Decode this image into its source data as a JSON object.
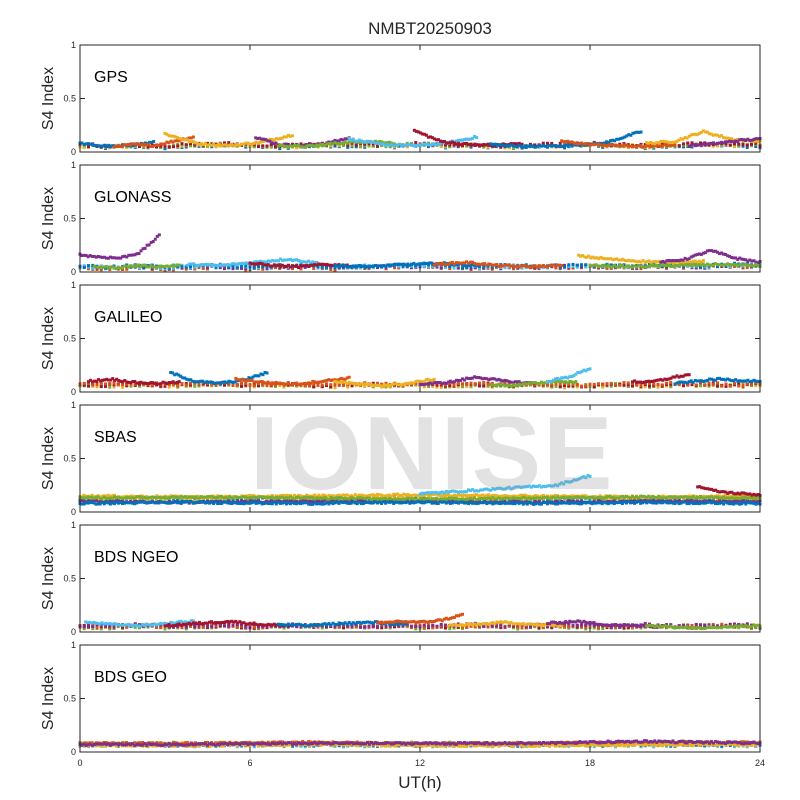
{
  "figure_title": "NMBT20250903",
  "watermark": "IONISE",
  "colors": [
    "#0072BD",
    "#D95319",
    "#EDB120",
    "#7E2F8E",
    "#77AC30",
    "#4DBEEE",
    "#A2142F"
  ],
  "chart_data": {
    "type": "scatter",
    "title": "NMBT20250903",
    "xlabel": "UT(h)",
    "xlim": [
      0,
      24
    ],
    "xticks": [
      "0",
      "6",
      "12",
      "18",
      "24"
    ],
    "ylabel": "S4 Index",
    "ylim": [
      0,
      1
    ],
    "yticks": [
      "0",
      "0.5",
      "1"
    ],
    "grid": false,
    "panels": [
      {
        "label": "GPS",
        "baseline": [
          0.06,
          0.05,
          0.06,
          0.05,
          0.06,
          0.07,
          0.06,
          0.05,
          0.06,
          0.07,
          0.06,
          0.06,
          0.07,
          0.06,
          0.06,
          0.05,
          0.06,
          0.06,
          0.07,
          0.06,
          0.05,
          0.06,
          0.07,
          0.07,
          0.06
        ],
        "arcs": [
          {
            "start": 0.0,
            "end": 2.6,
            "values": [
              0.08,
              0.06,
              0.05,
              0.07,
              0.09
            ]
          },
          {
            "start": 1.2,
            "end": 4.0,
            "values": [
              0.05,
              0.07,
              0.06,
              0.1,
              0.14
            ]
          },
          {
            "start": 3.0,
            "end": 7.5,
            "values": [
              0.17,
              0.08,
              0.06,
              0.09,
              0.16
            ]
          },
          {
            "start": 6.2,
            "end": 9.5,
            "values": [
              0.14,
              0.07,
              0.06,
              0.08,
              0.13
            ]
          },
          {
            "start": 7.0,
            "end": 11.0,
            "values": [
              0.06,
              0.05,
              0.08,
              0.1,
              0.09
            ]
          },
          {
            "start": 9.5,
            "end": 14.0,
            "values": [
              0.12,
              0.07,
              0.06,
              0.08,
              0.14
            ]
          },
          {
            "start": 11.8,
            "end": 15.5,
            "values": [
              0.2,
              0.1,
              0.07,
              0.06,
              0.08
            ]
          },
          {
            "start": 14.5,
            "end": 19.8,
            "values": [
              0.07,
              0.05,
              0.06,
              0.08,
              0.19
            ]
          },
          {
            "start": 17.0,
            "end": 21.0,
            "values": [
              0.1,
              0.07,
              0.06,
              0.05,
              0.07
            ]
          },
          {
            "start": 20.0,
            "end": 24.0,
            "values": [
              0.08,
              0.1,
              0.19,
              0.12,
              0.1
            ]
          },
          {
            "start": 21.5,
            "end": 24.0,
            "values": [
              0.06,
              0.07,
              0.09,
              0.11,
              0.12
            ]
          }
        ]
      },
      {
        "label": "GLONASS",
        "baseline": [
          0.05,
          0.04,
          0.05,
          0.04,
          0.05,
          0.05,
          0.04,
          0.05,
          0.05,
          0.04,
          0.05,
          0.05,
          0.06,
          0.05,
          0.04,
          0.05,
          0.05,
          0.05,
          0.06,
          0.05,
          0.05,
          0.06,
          0.05,
          0.06,
          0.06
        ],
        "arcs": [
          {
            "start": 0.0,
            "end": 2.8,
            "values": [
              0.16,
              0.14,
              0.13,
              0.18,
              0.34
            ]
          },
          {
            "start": 0.5,
            "end": 3.5,
            "values": [
              0.05,
              0.04,
              0.06,
              0.05,
              0.06
            ]
          },
          {
            "start": 3.8,
            "end": 8.5,
            "values": [
              0.07,
              0.06,
              0.09,
              0.12,
              0.08
            ]
          },
          {
            "start": 6.0,
            "end": 9.5,
            "values": [
              0.08,
              0.06,
              0.05,
              0.07,
              0.06
            ]
          },
          {
            "start": 9.0,
            "end": 14.0,
            "values": [
              0.06,
              0.05,
              0.07,
              0.08,
              0.06
            ]
          },
          {
            "start": 12.5,
            "end": 17.0,
            "values": [
              0.07,
              0.09,
              0.06,
              0.05,
              0.06
            ]
          },
          {
            "start": 17.6,
            "end": 22.0,
            "values": [
              0.15,
              0.12,
              0.1,
              0.09,
              0.1
            ]
          },
          {
            "start": 20.5,
            "end": 24.0,
            "values": [
              0.09,
              0.12,
              0.2,
              0.13,
              0.09
            ]
          },
          {
            "start": 18.0,
            "end": 24.0,
            "values": [
              0.06,
              0.05,
              0.06,
              0.07,
              0.06
            ]
          }
        ]
      },
      {
        "label": "GALILEO",
        "baseline": [
          0.07,
          0.06,
          0.07,
          0.06,
          0.07,
          0.07,
          0.06,
          0.07,
          0.06,
          0.06,
          0.07,
          0.06,
          0.07,
          0.06,
          0.07,
          0.06,
          0.07,
          0.06,
          0.06,
          0.07,
          0.06,
          0.07,
          0.07,
          0.06,
          0.07
        ],
        "arcs": [
          {
            "start": 0.3,
            "end": 3.5,
            "values": [
              0.1,
              0.12,
              0.09,
              0.08,
              0.09
            ]
          },
          {
            "start": 3.2,
            "end": 6.6,
            "values": [
              0.18,
              0.1,
              0.08,
              0.11,
              0.18
            ]
          },
          {
            "start": 5.5,
            "end": 9.5,
            "values": [
              0.12,
              0.09,
              0.07,
              0.1,
              0.13
            ]
          },
          {
            "start": 9.0,
            "end": 12.5,
            "values": [
              0.1,
              0.07,
              0.06,
              0.08,
              0.12
            ]
          },
          {
            "start": 12.0,
            "end": 16.0,
            "values": [
              0.07,
              0.09,
              0.14,
              0.1,
              0.08
            ]
          },
          {
            "start": 14.5,
            "end": 17.5,
            "values": [
              0.07,
              0.06,
              0.08,
              0.1,
              0.09
            ]
          },
          {
            "start": 16.5,
            "end": 18.0,
            "values": [
              0.1,
              0.12,
              0.14,
              0.18,
              0.22
            ]
          },
          {
            "start": 19.5,
            "end": 21.5,
            "values": [
              0.1,
              0.09,
              0.11,
              0.14,
              0.16
            ]
          },
          {
            "start": 21.0,
            "end": 24.0,
            "values": [
              0.08,
              0.1,
              0.12,
              0.11,
              0.1
            ]
          }
        ]
      },
      {
        "label": "SBAS",
        "baseline": [
          0.12,
          0.11,
          0.12,
          0.12,
          0.11,
          0.12,
          0.13,
          0.12,
          0.11,
          0.12,
          0.12,
          0.13,
          0.12,
          0.12,
          0.11,
          0.12,
          0.12,
          0.13,
          0.12,
          0.11,
          0.12,
          0.12,
          0.13,
          0.12,
          0.12
        ],
        "arcs": [
          {
            "start": 0.0,
            "end": 24.0,
            "values": [
              0.15,
              0.14,
              0.15,
              0.16,
              0.15,
              0.14,
              0.15
            ]
          },
          {
            "start": 0.0,
            "end": 24.0,
            "values": [
              0.1,
              0.09,
              0.1,
              0.1,
              0.09,
              0.1,
              0.1
            ]
          },
          {
            "start": 0.0,
            "end": 24.0,
            "values": [
              0.13,
              0.14,
              0.13,
              0.12,
              0.13,
              0.14,
              0.13
            ]
          },
          {
            "start": 12.0,
            "end": 18.0,
            "values": [
              0.17,
              0.19,
              0.21,
              0.23,
              0.25,
              0.34
            ]
          },
          {
            "start": 21.8,
            "end": 24.0,
            "values": [
              0.24,
              0.2,
              0.18,
              0.17,
              0.16
            ]
          },
          {
            "start": 0.0,
            "end": 24.0,
            "values": [
              0.08,
              0.09,
              0.08,
              0.09,
              0.08,
              0.09,
              0.08
            ]
          }
        ]
      },
      {
        "label": "BDS NGEO",
        "baseline": [
          0.05,
          0.05,
          0.06,
          0.05,
          0.05,
          0.06,
          0.05,
          0.05,
          0.06,
          0.05,
          0.05,
          0.06,
          0.05,
          0.05,
          0.06,
          0.05,
          0.05,
          0.06,
          0.05,
          0.05,
          0.06,
          0.05,
          0.05,
          0.06,
          0.05
        ],
        "arcs": [
          {
            "start": 0.2,
            "end": 4.0,
            "values": [
              0.09,
              0.07,
              0.06,
              0.08,
              0.1
            ]
          },
          {
            "start": 3.0,
            "end": 7.5,
            "values": [
              0.06,
              0.08,
              0.1,
              0.07,
              0.06
            ]
          },
          {
            "start": 7.0,
            "end": 11.5,
            "values": [
              0.07,
              0.06,
              0.08,
              0.09,
              0.07
            ]
          },
          {
            "start": 10.5,
            "end": 13.5,
            "values": [
              0.08,
              0.1,
              0.09,
              0.11,
              0.16
            ]
          },
          {
            "start": 13.0,
            "end": 17.0,
            "values": [
              0.06,
              0.07,
              0.09,
              0.07,
              0.06
            ]
          },
          {
            "start": 16.5,
            "end": 20.5,
            "values": [
              0.08,
              0.1,
              0.07,
              0.06,
              0.05
            ]
          },
          {
            "start": 20.0,
            "end": 24.0,
            "values": [
              0.06,
              0.05,
              0.04,
              0.05,
              0.06
            ]
          }
        ]
      },
      {
        "label": "BDS GEO",
        "baseline": [
          0.07,
          0.07,
          0.07,
          0.07,
          0.07,
          0.07,
          0.07,
          0.07,
          0.07,
          0.07,
          0.07,
          0.07,
          0.07,
          0.07,
          0.07,
          0.07,
          0.07,
          0.07,
          0.07,
          0.07,
          0.07,
          0.07,
          0.07,
          0.07,
          0.07
        ],
        "arcs": [
          {
            "start": 0.0,
            "end": 24.0,
            "values": [
              0.08,
              0.08,
              0.09,
              0.08,
              0.08,
              0.09,
              0.09
            ]
          },
          {
            "start": 0.0,
            "end": 24.0,
            "values": [
              0.06,
              0.06,
              0.07,
              0.06,
              0.06,
              0.07,
              0.07
            ]
          },
          {
            "start": 0.0,
            "end": 24.0,
            "values": [
              0.07,
              0.07,
              0.08,
              0.08,
              0.08,
              0.1,
              0.08
            ]
          }
        ]
      }
    ]
  }
}
